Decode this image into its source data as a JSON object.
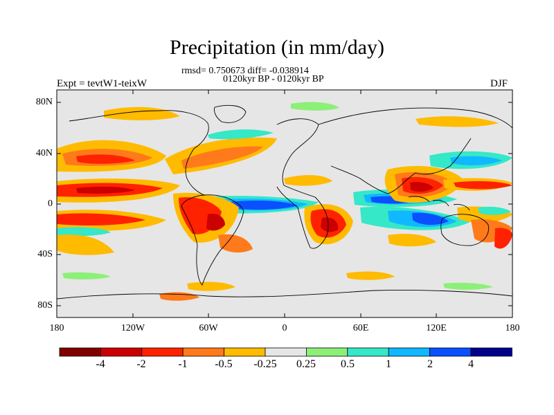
{
  "title": "Precipitation (in mm/day)",
  "subtitle_line1": "rmsd= 0.750673 diff= -0.038914",
  "subtitle_line2": "0120kyr BP - 0120kyr BP",
  "experiment": "Expt = tevtW1-teixW",
  "season": "DJF",
  "lat_labels": [
    "80N",
    "40N",
    "0",
    "40S",
    "80S"
  ],
  "lon_labels": [
    "180",
    "120W",
    "60W",
    "0",
    "60E",
    "120E",
    "180"
  ],
  "colorbar": {
    "labels": [
      "-4",
      "-2",
      "-1",
      "-0.5",
      "-0.25",
      "0.25",
      "0.5",
      "1",
      "2",
      "4"
    ],
    "colors": [
      "#800000",
      "#cc0000",
      "#ff2200",
      "#ff7a1a",
      "#ffbb00",
      "#e6e6e6",
      "#8cf078",
      "#34e8c8",
      "#10b8ff",
      "#0a50ff",
      "#00008c"
    ]
  },
  "map_background": "#e6e6e6",
  "coastline_color": "#000000"
}
